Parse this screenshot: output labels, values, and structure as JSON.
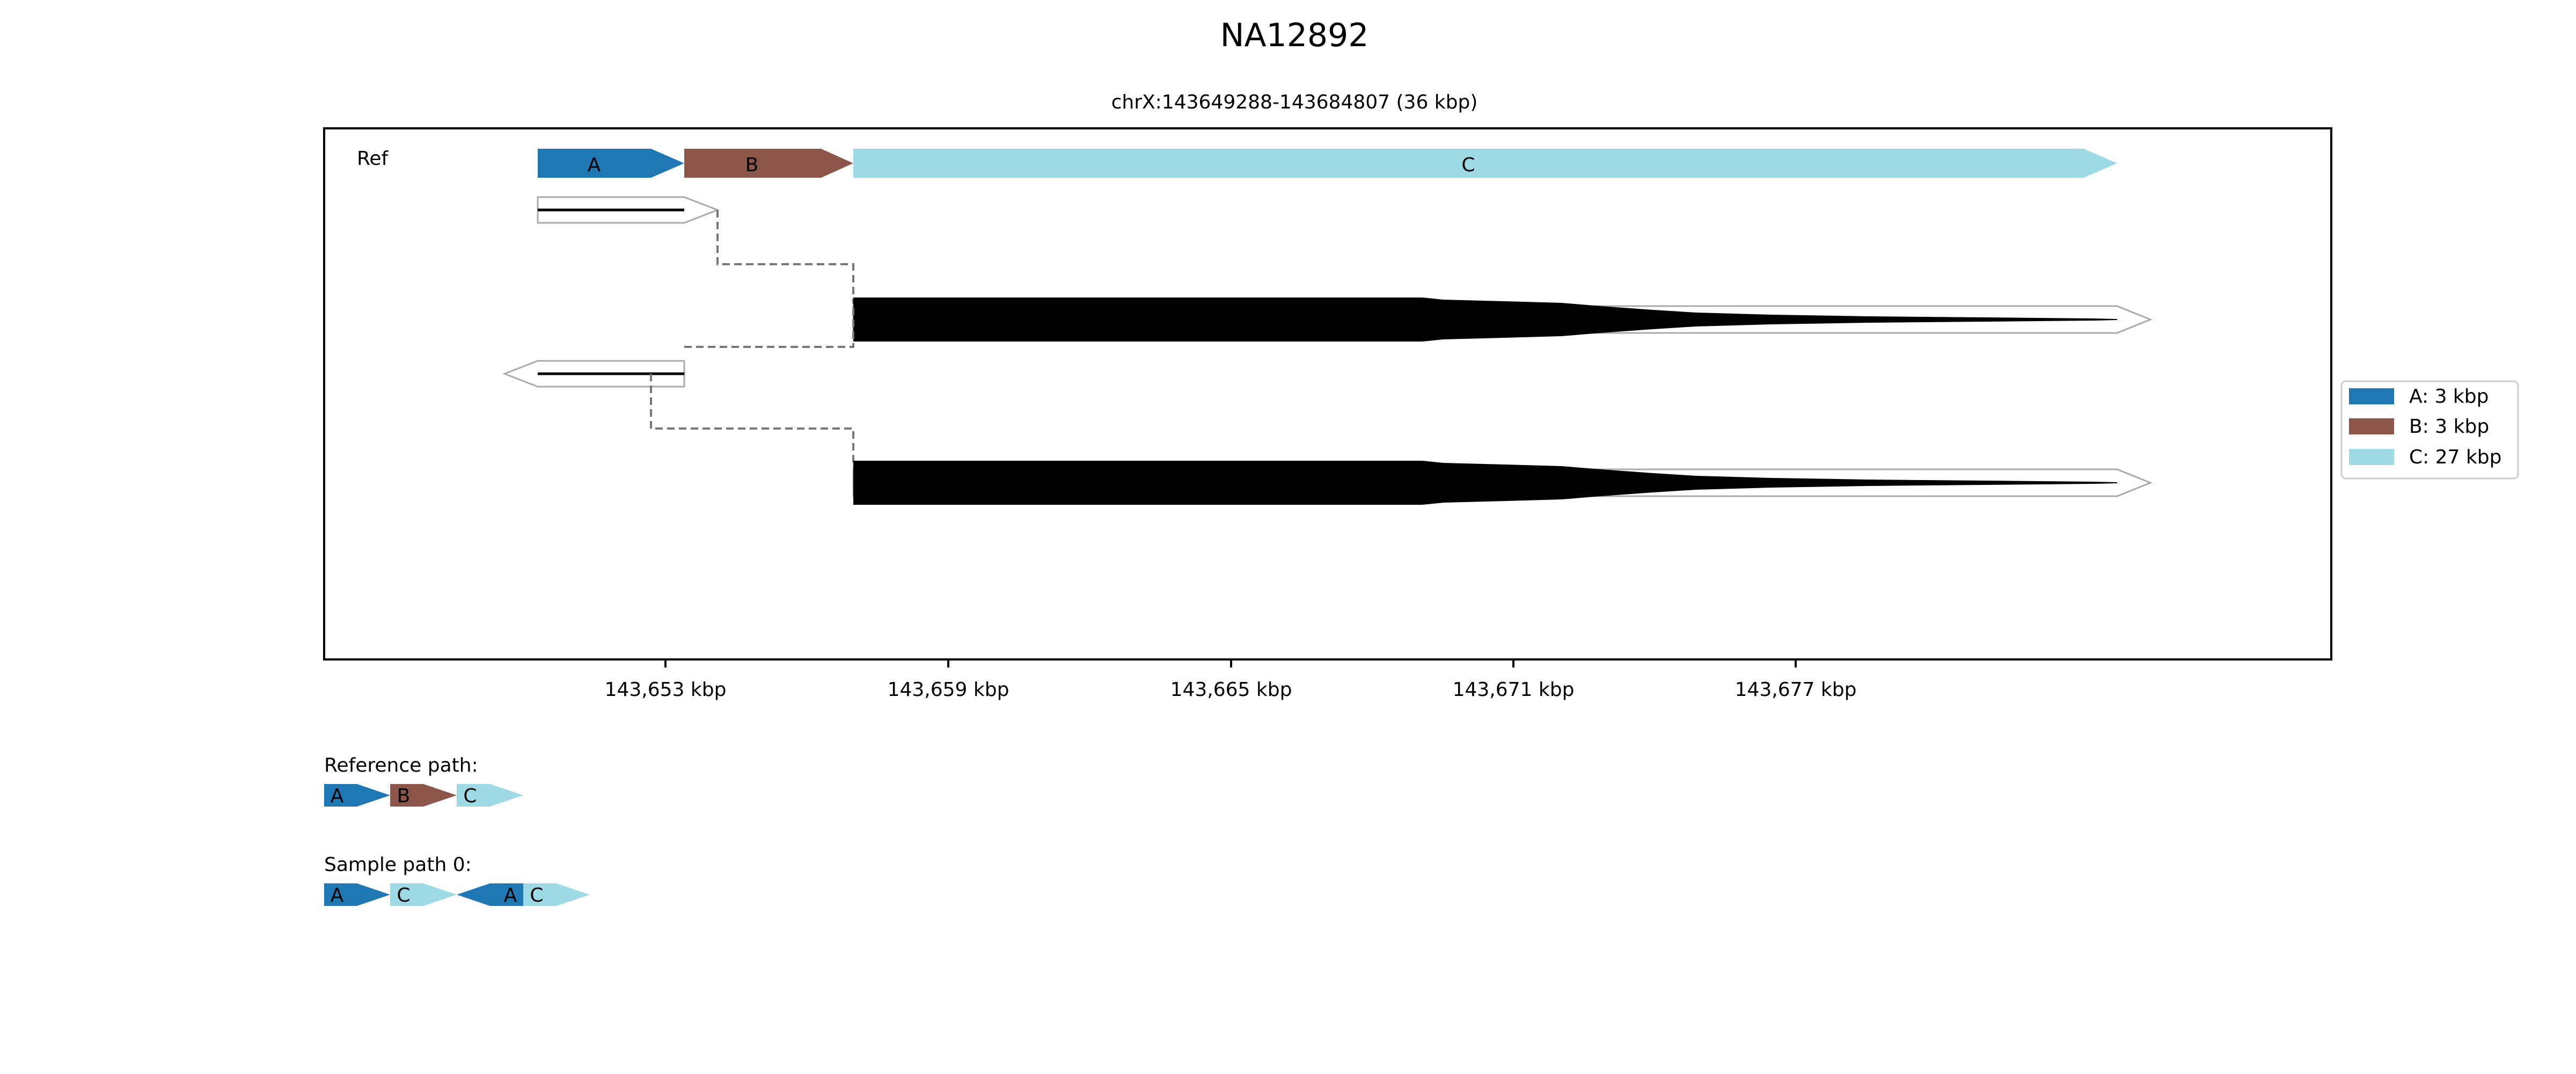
{
  "title": "NA12892",
  "subtitle": "chrX:143649288-143684807 (36 kbp)",
  "ref_label": "Ref",
  "x_ticks": [
    "143,653 kbp",
    "143,659 kbp",
    "143,665 kbp",
    "143,671 kbp",
    "143,677 kbp"
  ],
  "colors": {
    "A": "#1f77b4",
    "B": "#8c564b",
    "C": "#9edae5"
  },
  "reference_segments": [
    {
      "label": "A",
      "color": "#1f77b4"
    },
    {
      "label": "B",
      "color": "#8c564b"
    },
    {
      "label": "C",
      "color": "#9edae5"
    }
  ],
  "legend": [
    {
      "label": "A: 3 kbp",
      "color": "#1f77b4"
    },
    {
      "label": "B: 3 kbp",
      "color": "#8c564b"
    },
    {
      "label": "C: 27 kbp",
      "color": "#9edae5"
    }
  ],
  "reference_path": {
    "label": "Reference path:",
    "segments": [
      {
        "label": "A",
        "color": "#1f77b4",
        "direction": "forward"
      },
      {
        "label": "B",
        "color": "#8c564b",
        "direction": "forward"
      },
      {
        "label": "C",
        "color": "#9edae5",
        "direction": "forward"
      }
    ]
  },
  "sample_path": {
    "label": "Sample path 0:",
    "segments": [
      {
        "label": "A",
        "color": "#1f77b4",
        "direction": "forward"
      },
      {
        "label": "C",
        "color": "#9edae5",
        "direction": "forward"
      },
      {
        "label": "A",
        "color": "#1f77b4",
        "direction": "reverse"
      },
      {
        "label": "C",
        "color": "#9edae5",
        "direction": "forward"
      }
    ]
  }
}
